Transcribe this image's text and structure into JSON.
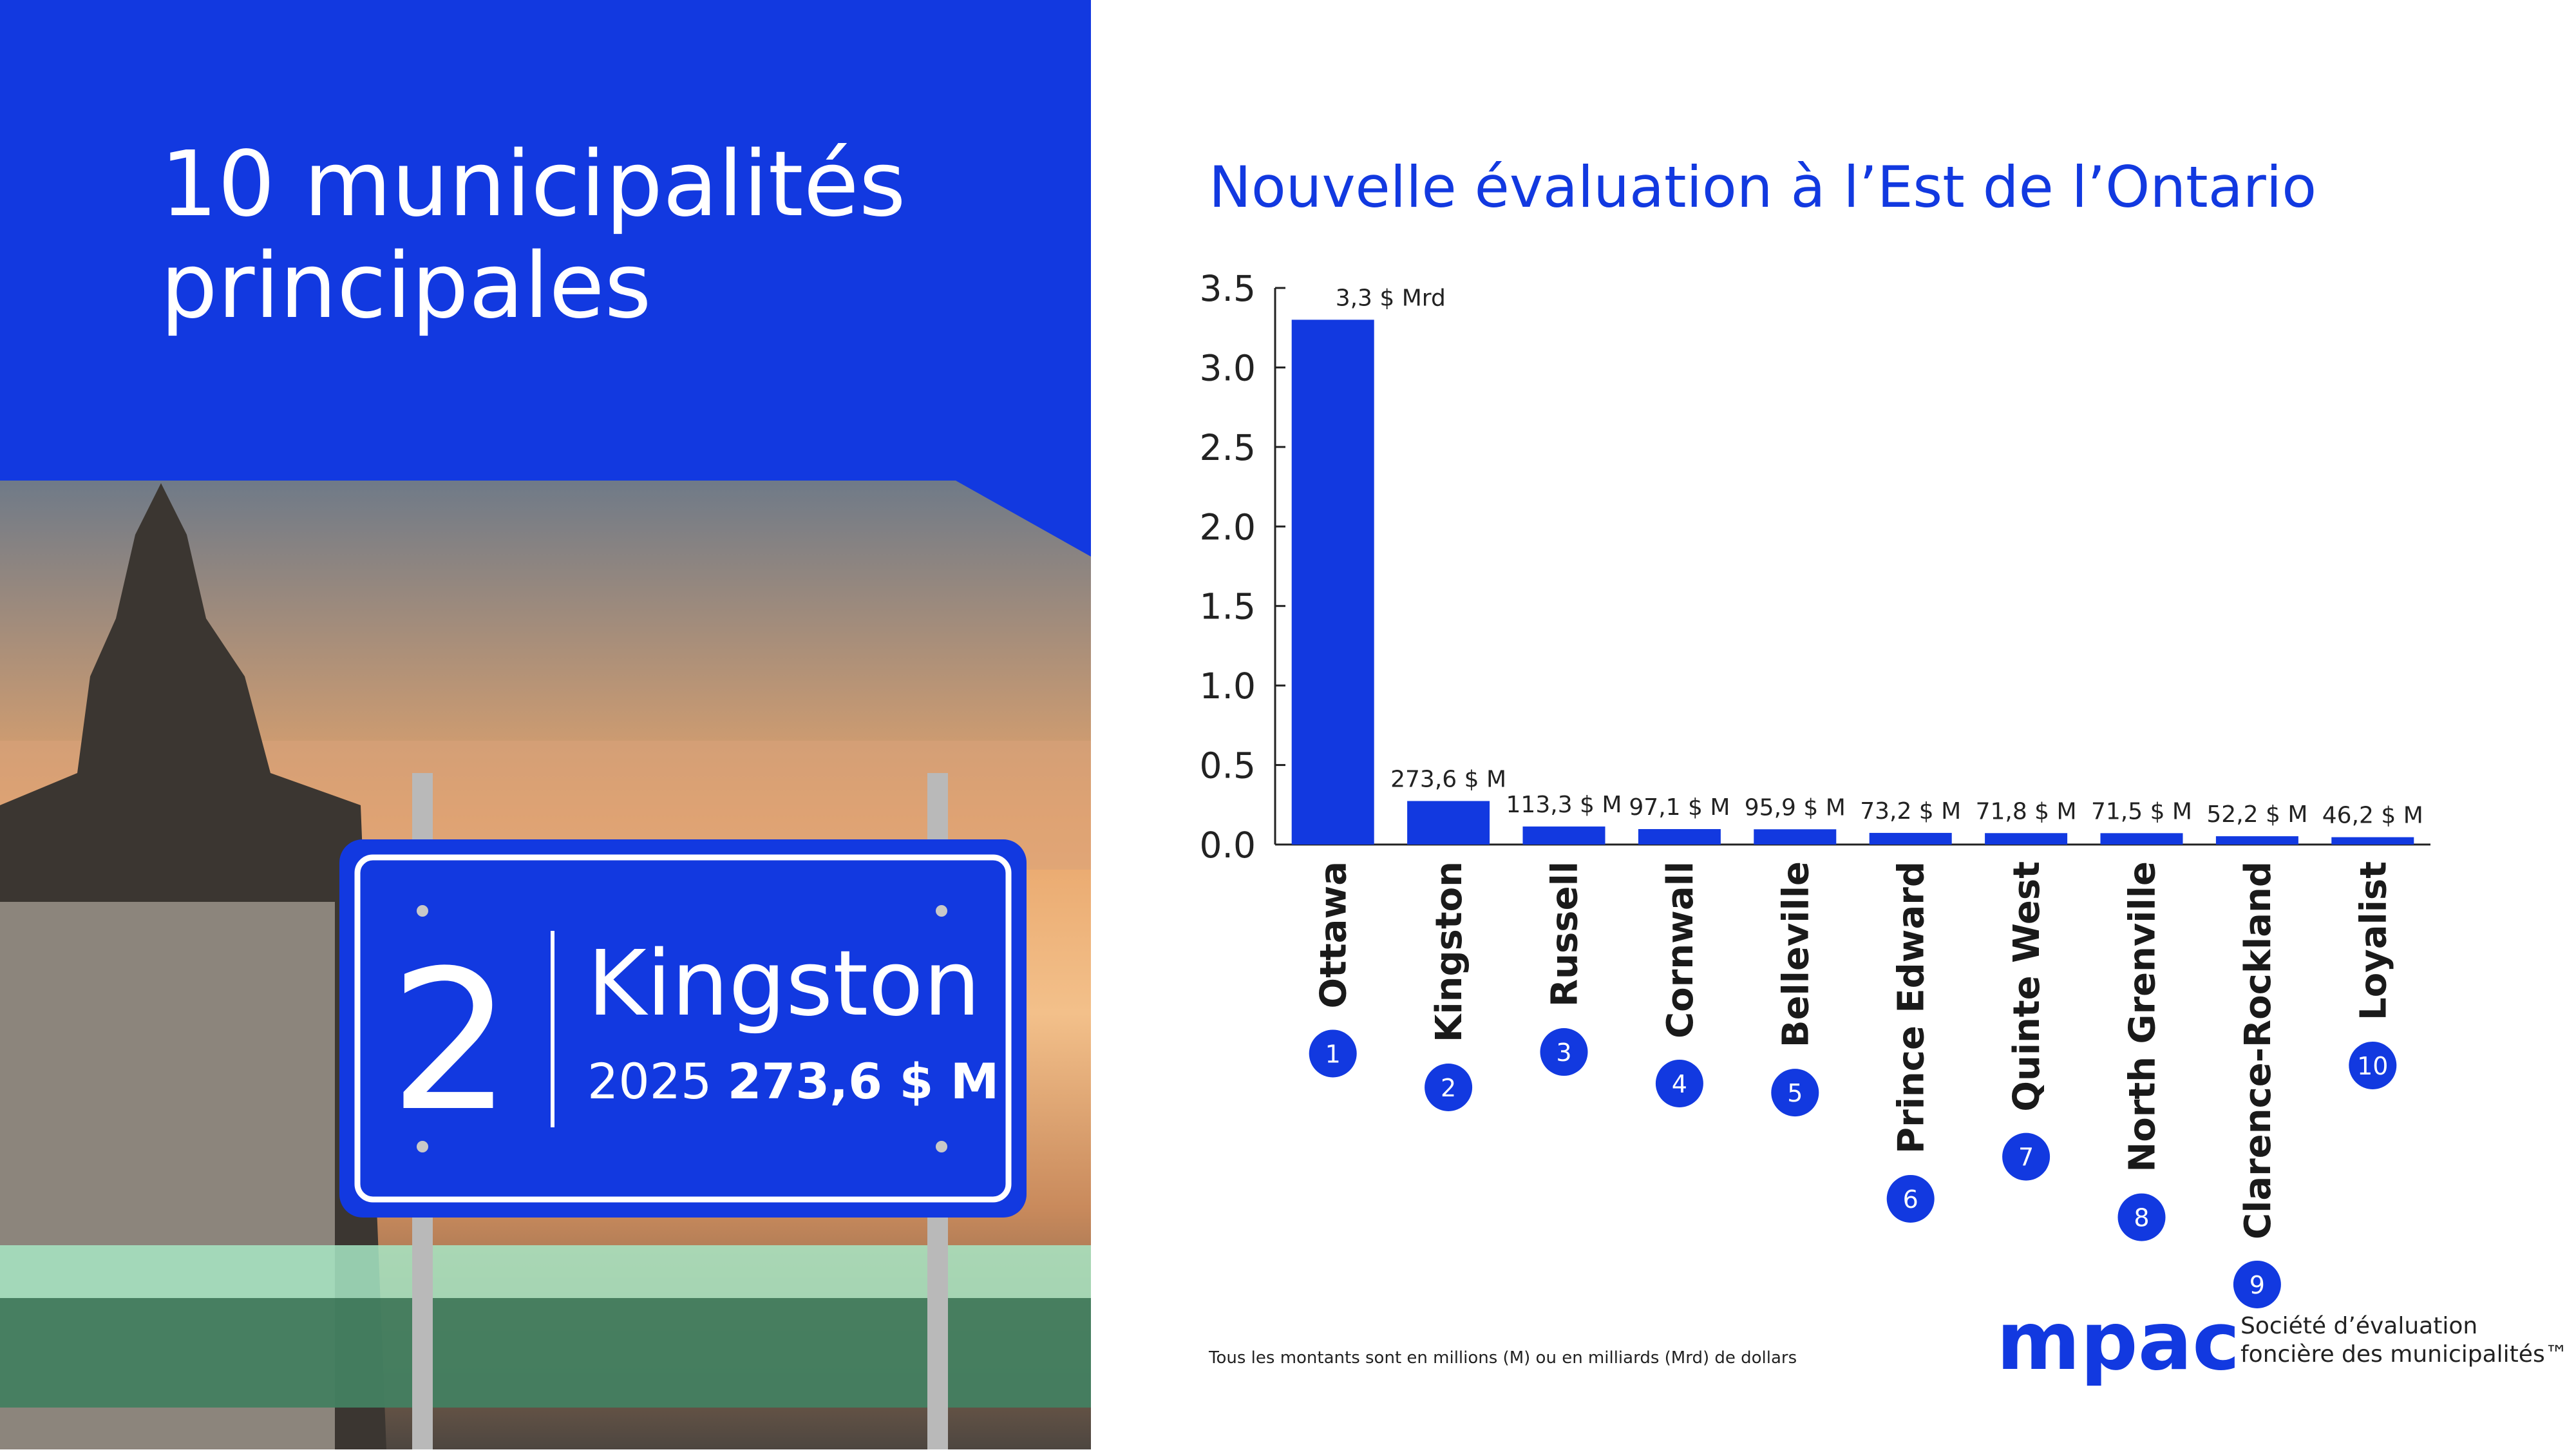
{
  "title": "10 municipalités principales",
  "sign": {
    "rank": "2",
    "name": "Kingston",
    "year": "2025",
    "amount": "273,6 $ M"
  },
  "footnote": "Tous les montants sont en millions (M) ou en milliards (Mrd) de dollars",
  "logo": {
    "brand": "mpac",
    "line1": "Société d’évaluation",
    "line2": "foncière des municipalités™"
  },
  "chart_data": {
    "type": "bar",
    "title": "Nouvelle évaluation à l’Est de l’Ontario",
    "categories": [
      "Ottawa",
      "Kingston",
      "Russell",
      "Cornwall",
      "Belleville",
      "Prince Edward",
      "Quinte West",
      "North Grenville",
      "Clarence-Rockland",
      "Loyalist"
    ],
    "ranks": [
      "1",
      "2",
      "3",
      "4",
      "5",
      "6",
      "7",
      "8",
      "9",
      "10"
    ],
    "values": [
      3.3,
      0.2736,
      0.1133,
      0.0971,
      0.0959,
      0.0732,
      0.0718,
      0.0715,
      0.0522,
      0.0462
    ],
    "value_labels": [
      "3,3 $ Mrd",
      "273,6 $ M",
      "113,3 $ M",
      "97,1 $ M",
      "95,9 $ M",
      "73,2 $ M",
      "71,8 $ M",
      "71,5 $ M",
      "52,2 $ M",
      "46,2 $ M"
    ],
    "color": "#1239e0",
    "ylim": [
      0,
      3.5
    ],
    "yticks": [
      {
        "value": 0,
        "label": "0.0"
      },
      0.5,
      {
        "value": 1,
        "label": "1.0"
      },
      1.5,
      {
        "value": 2,
        "label": "2.0"
      },
      2.5,
      {
        "value": 3,
        "label": "3.0"
      },
      3.5
    ],
    "grid": false
  }
}
